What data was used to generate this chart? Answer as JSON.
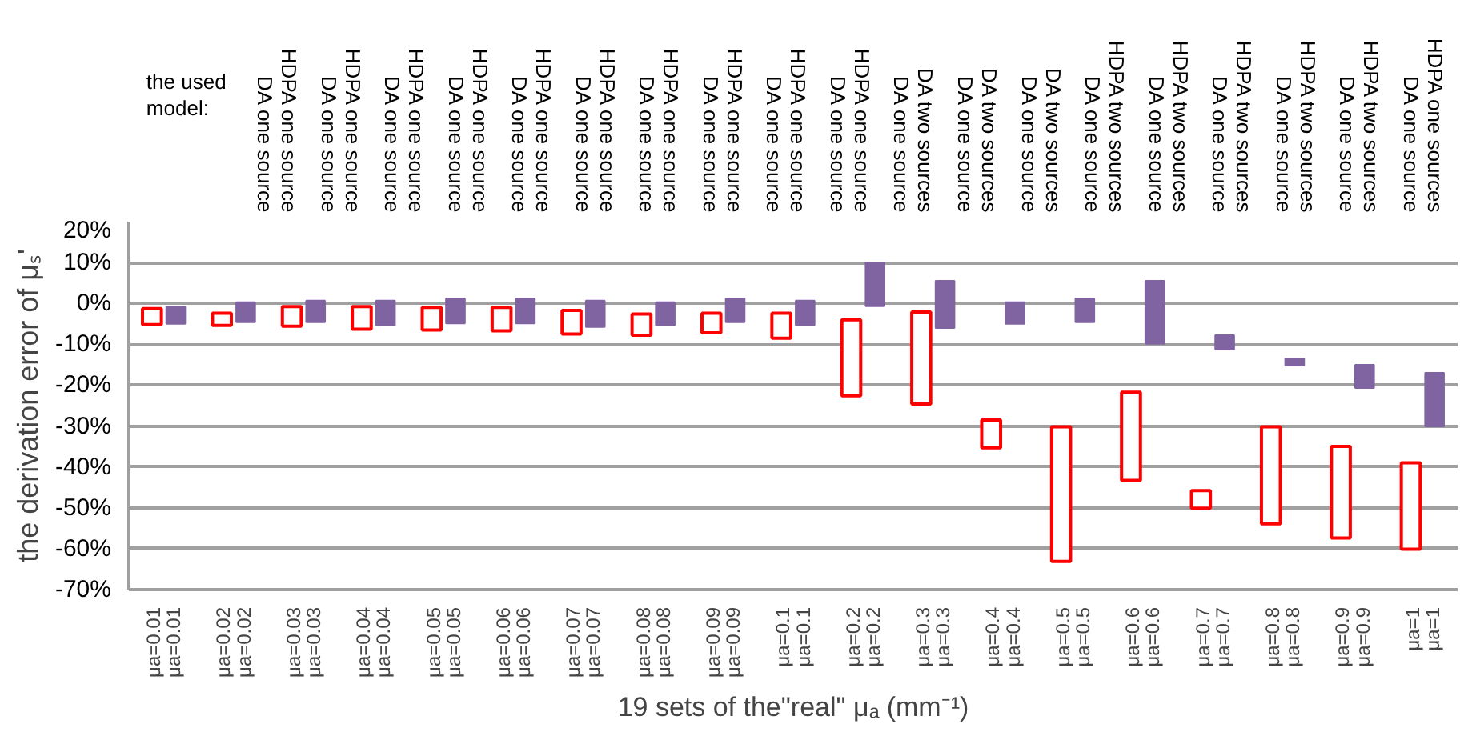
{
  "chart_data": {
    "type": "bar",
    "xlabel": "19 sets of the\"real\" μₐ (mm⁻¹)",
    "ylabel": "the derivation error of μₛ'",
    "categories": [
      "μa=0.01\nμa=0.01",
      "μa=0.02\nμa=0.02",
      "μa=0.03\nμa=0.03",
      "μa=0.04\nμa=0.04",
      "μa=0.05\nμa=0.05",
      "μa=0.06\nμa=0.06",
      "μa=0.07\nμa=0.07",
      "μa=0.08\nμa=0.08",
      "μa=0.09\nμa=0.09",
      "μa=0.1\nμa=0.1",
      "μa=0.2\nμa=0.2",
      "μa=0.3\nμa=0.3",
      "μa=0.4\nμa=0.4",
      "μa=0.5\nμa=0.5",
      "μa=0.6\nμa=0.6",
      "μa=0.7\nμa=0.7",
      "μa=0.8\nμa=0.8",
      "μa=0.9\nμa=0.9",
      "μa=1\nμa=1"
    ],
    "series": [
      {
        "color": "#ff0000",
        "base": [
          -5.2,
          -5.4,
          -5.6,
          -6.3,
          -6.5,
          -6.7,
          -7.5,
          -7.8,
          -7.2,
          -8.5,
          -22.6,
          -24.6,
          -35.3,
          -63.1,
          -43.3,
          -50.1,
          -53.9,
          -57.4,
          -60.1
        ],
        "values": [
          3.9,
          3.0,
          4.8,
          5.5,
          5.5,
          5.7,
          5.8,
          5.2,
          4.8,
          6.1,
          18.6,
          22.5,
          6.8,
          32.9,
          21.6,
          4.3,
          23.7,
          22.4,
          21.1
        ]
      },
      {
        "color": "#8064a2",
        "base": [
          -5.0,
          -4.6,
          -4.6,
          -5.4,
          -4.9,
          -4.9,
          -5.8,
          -5.4,
          -4.6,
          -5.4,
          -0.7,
          -6.0,
          -5.0,
          -4.6,
          -9.9,
          -11.3,
          -15.2,
          -20.7,
          -30.1
        ],
        "values": [
          4.2,
          4.9,
          5.3,
          6.1,
          6.1,
          6.1,
          6.5,
          5.7,
          5.8,
          6.1,
          10.7,
          11.5,
          5.3,
          5.8,
          15.4,
          3.5,
          1.7,
          5.7,
          13.1
        ]
      }
    ],
    "ylim": [
      -70,
      20
    ],
    "yticks": [
      {
        "value": -70,
        "label": "-70%"
      },
      {
        "value": -60,
        "label": "-60%"
      },
      {
        "value": -50,
        "label": "-50%"
      },
      {
        "value": -40,
        "label": "-40%"
      },
      {
        "value": -30,
        "label": "-30%"
      },
      {
        "value": -20,
        "label": "-20%"
      },
      {
        "value": -10,
        "label": "-10%"
      },
      {
        "value": 0,
        "label": "0%"
      },
      {
        "value": 10,
        "label": "10%"
      },
      {
        "value": 20,
        "label": "20%"
      }
    ],
    "grid": "y",
    "annotations": [
      "the used\nmodel:",
      "HDPA one source\nDA one source",
      "HDPA one source\nDA one source",
      "HDPA one source\nDA one source",
      "HDPA one source\nDA one source",
      "HDPA one source\nDA one source",
      "HDPA one source\nDA one source",
      "HDPA one source\nDA one source",
      "HDPA one source\nDA one source",
      "HDPA one source\nDA one source",
      "HDPA one source\nDA one source",
      "DA two sources\nDA one source",
      "DA two sources\nDA one source",
      "DA two sources\nDA one source",
      "HDPA two sources\nDA one source",
      "HDPA two sources\nDA one source",
      "HDPA two sources\nDA one source",
      "HDPA two sources\nDA one source",
      "HDPA two sources\nDA one source",
      "HDPA one sources\nDA one source"
    ]
  }
}
